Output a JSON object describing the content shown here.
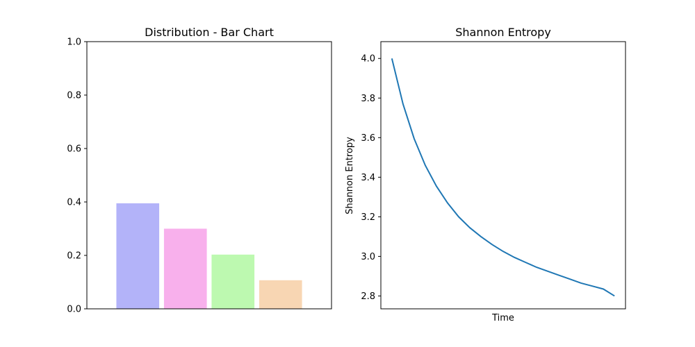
{
  "chart_data": [
    {
      "type": "bar",
      "title": "Distribution - Bar Chart",
      "xlabel": "",
      "ylabel": "",
      "categories": [
        "",
        "",
        "",
        ""
      ],
      "values": [
        0.395,
        0.3,
        0.203,
        0.107
      ],
      "colors": [
        "#b3b3f9",
        "#f8b0ec",
        "#bdf9b0",
        "#f8d6b3"
      ],
      "ylim": [
        0,
        1.0
      ],
      "yticks": [
        "0.0",
        "0.2",
        "0.4",
        "0.6",
        "0.8",
        "1.0"
      ],
      "grid": false
    },
    {
      "type": "line",
      "title": "Shannon Entropy",
      "xlabel": "Time",
      "ylabel": "Shannon Entropy",
      "yticks": [
        "2.8",
        "3.0",
        "3.2",
        "3.4",
        "3.6",
        "3.8",
        "4.0"
      ],
      "ylim": [
        2.735,
        4.085
      ],
      "line_color": "#1f77b4",
      "grid": false,
      "series": [
        {
          "x": [
            0,
            1,
            2,
            3,
            4,
            5,
            6,
            7,
            8,
            9,
            10,
            11,
            12,
            13,
            14,
            15,
            16,
            17,
            18,
            19,
            20
          ],
          "values": [
            4.0,
            3.77,
            3.595,
            3.46,
            3.355,
            3.27,
            3.2,
            3.145,
            3.1,
            3.06,
            3.025,
            2.995,
            2.97,
            2.945,
            2.925,
            2.905,
            2.885,
            2.865,
            2.85,
            2.835,
            2.8
          ]
        }
      ]
    }
  ]
}
